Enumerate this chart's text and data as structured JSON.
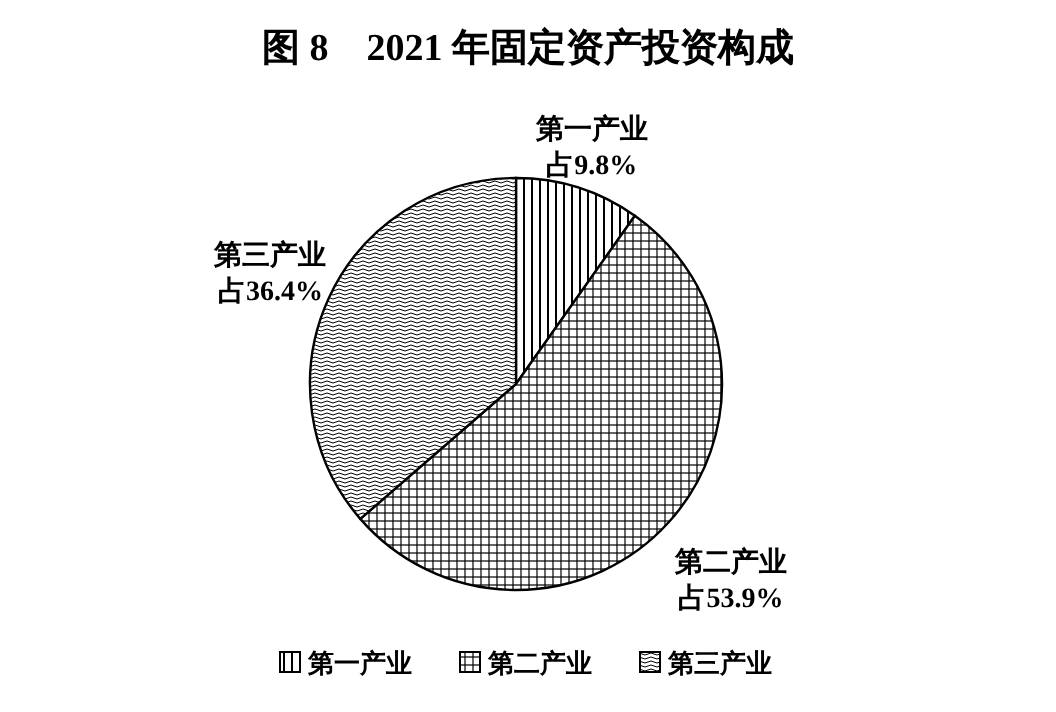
{
  "chart_data": {
    "type": "pie",
    "title": "图 8　2021 年固定资产投资构成",
    "categories": [
      "第一产业",
      "第二产业",
      "第三产业"
    ],
    "values": [
      9.8,
      53.9,
      36.4
    ],
    "value_labels": [
      "占9.8%",
      "占53.9%",
      "占36.4%"
    ],
    "colors": [
      "#000000",
      "#000000",
      "#000000"
    ],
    "legend": "bottom"
  }
}
